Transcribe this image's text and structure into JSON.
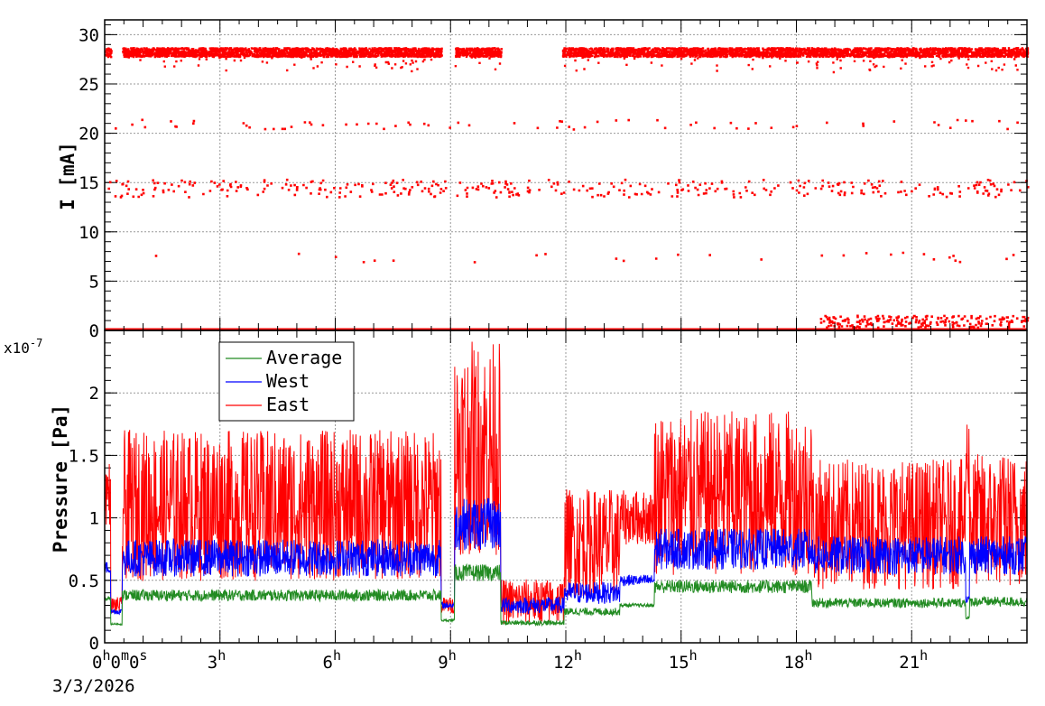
{
  "chart_data": [
    {
      "type": "scatter",
      "ylabel": "I [mA]",
      "ylim": [
        0,
        31.5
      ],
      "yticks": [
        "0",
        "5",
        "10",
        "15",
        "20",
        "25",
        "30"
      ],
      "ytick_values": [
        0,
        5,
        10,
        15,
        20,
        25,
        30
      ],
      "xlim_hours": [
        0,
        24
      ],
      "grid": true,
      "color": "#ff0000",
      "series": [
        {
          "level": 28.3,
          "description_hours_ranges": [
            [
              0,
              0.15
            ],
            [
              0.45,
              8.75
            ],
            [
              9.1,
              10.3
            ],
            [
              11.9,
              24
            ]
          ]
        },
        {
          "level": 0,
          "description_hours_ranges": [
            [
              0,
              24
            ]
          ]
        }
      ],
      "scatter_levels": [
        21.0,
        14.5,
        7.5,
        1.0
      ]
    },
    {
      "type": "line",
      "ylabel": "Pressure [Pa]",
      "y_exponent_label": "x10",
      "y_exponent": "-7",
      "ylim": [
        0,
        2.5
      ],
      "yticks": [
        "0",
        "0.5",
        "1",
        "1.5",
        "2"
      ],
      "ytick_values": [
        0,
        0.5,
        1,
        1.5,
        2
      ],
      "grid": true,
      "legend_position": "top-left",
      "legend": [
        {
          "name": "Average",
          "color": "#228B22"
        },
        {
          "name": "West",
          "color": "#0000ff"
        },
        {
          "name": "East",
          "color": "#ff0000"
        }
      ],
      "segments_hours": [
        {
          "start": 0.0,
          "end": 0.15,
          "avg": 0.35,
          "west": 0.6,
          "east": 1.2
        },
        {
          "start": 0.15,
          "end": 0.45,
          "avg": 0.15,
          "west": 0.25,
          "east": 0.3
        },
        {
          "start": 0.45,
          "end": 8.75,
          "avg": 0.38,
          "west": 0.68,
          "east": 1.1
        },
        {
          "start": 8.75,
          "end": 9.1,
          "avg": 0.18,
          "west": 0.3,
          "east": 0.3
        },
        {
          "start": 9.1,
          "end": 10.3,
          "avg": 0.56,
          "west": 0.95,
          "east": 1.56
        },
        {
          "start": 10.3,
          "end": 11.95,
          "avg": 0.16,
          "west": 0.3,
          "east": 0.33
        },
        {
          "start": 11.95,
          "end": 13.4,
          "avg": 0.25,
          "west": 0.4,
          "east": 0.8
        },
        {
          "start": 13.4,
          "end": 14.3,
          "avg": 0.3,
          "west": 0.5,
          "east": 1.0
        },
        {
          "start": 14.3,
          "end": 18.4,
          "avg": 0.45,
          "west": 0.75,
          "east": 1.2
        },
        {
          "start": 18.4,
          "end": 22.4,
          "avg": 0.32,
          "west": 0.7,
          "east": 0.95
        },
        {
          "start": 22.4,
          "end": 22.5,
          "avg": 0.2,
          "west": 0.35,
          "east": 1.5
        },
        {
          "start": 22.5,
          "end": 24.0,
          "avg": 0.33,
          "west": 0.7,
          "east": 0.98
        }
      ]
    }
  ],
  "xaxis": {
    "ticks": [
      {
        "hours": 0,
        "base": "0",
        "sup": "h",
        "extra": "0m0s"
      },
      {
        "hours": 3,
        "base": "3",
        "sup": "h"
      },
      {
        "hours": 6,
        "base": "6",
        "sup": "h"
      },
      {
        "hours": 9,
        "base": "9",
        "sup": "h"
      },
      {
        "hours": 12,
        "base": "12",
        "sup": "h"
      },
      {
        "hours": 15,
        "base": "15",
        "sup": "h"
      },
      {
        "hours": 18,
        "base": "18",
        "sup": "h"
      },
      {
        "hours": 21,
        "base": "21",
        "sup": "h"
      }
    ],
    "date_label": "3/3/2026"
  }
}
